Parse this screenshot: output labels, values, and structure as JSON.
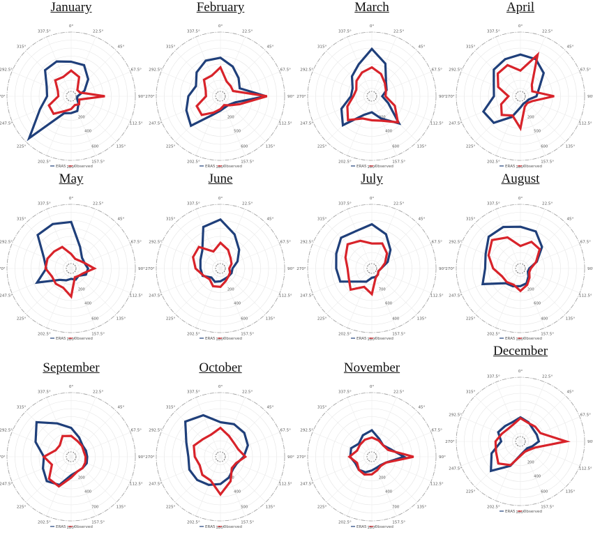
{
  "chart_data": {
    "type": "radar",
    "angle_labels": [
      "0°",
      "22.5°",
      "45°",
      "67.5°",
      "90°",
      "112.5°",
      "135°",
      "157.5°",
      "180°",
      "202.5°",
      "225°",
      "247.5°",
      "270°",
      "292.5°",
      "315°",
      "337.5°"
    ],
    "legend": [
      {
        "name": "ERA5",
        "color": "#1f3f7a"
      },
      {
        "name": "Observed",
        "color": "#d8232a"
      }
    ],
    "panels": [
      {
        "title": "January",
        "rmax": 800,
        "radial_ticks": [
          "200",
          "400",
          "600"
        ],
        "series": [
          {
            "name": "ERA5",
            "values": [
              430,
              420,
              300,
              180,
              80,
              80,
              130,
              200,
              210,
              230,
              740,
              420,
              300,
              330,
              460,
              470
            ]
          },
          {
            "name": "Observed",
            "values": [
              320,
              260,
              110,
              120,
              420,
              110,
              140,
              120,
              160,
              200,
              310,
              300,
              160,
              180,
              280,
              260
            ]
          }
        ]
      },
      {
        "title": "February",
        "rmax": 800,
        "radial_ticks": [
          "200",
          "500",
          "600"
        ],
        "series": [
          {
            "name": "ERA5",
            "values": [
              480,
              400,
              320,
              260,
              570,
              200,
              150,
              150,
              180,
              250,
              520,
              460,
              400,
              330,
              420,
              480
            ]
          },
          {
            "name": "Observed",
            "values": [
              360,
              200,
              180,
              170,
              580,
              260,
              160,
              120,
              160,
              220,
              330,
              320,
              180,
              200,
              290,
              280
            ]
          }
        ]
      },
      {
        "title": "March",
        "rmax": 800,
        "radial_ticks": [
          "200",
          "400",
          "600"
        ],
        "series": [
          {
            "name": "ERA5",
            "values": [
              590,
              440,
              250,
              200,
              130,
              220,
              480,
              300,
              200,
              250,
              510,
              410,
              260,
              260,
              350,
              430
            ]
          },
          {
            "name": "Observed",
            "values": [
              360,
              300,
              230,
              190,
              170,
              310,
              460,
              330,
              300,
              300,
              420,
              330,
              230,
              210,
              270,
              320
            ]
          }
        ]
      },
      {
        "title": "April",
        "rmax": 800,
        "radial_ticks": [
          "200",
          "500",
          "600"
        ],
        "series": [
          {
            "name": "ERA5",
            "values": [
              520,
              500,
              410,
              250,
              200,
              110,
              100,
              100,
              140,
              280,
              470,
              500,
              330,
              360,
              470,
              500
            ]
          },
          {
            "name": "Observed",
            "values": [
              320,
              560,
              200,
              160,
              420,
              160,
              120,
              140,
              400,
              260,
              330,
              260,
              150,
              300,
              400,
              420
            ]
          }
        ]
      },
      {
        "title": "May",
        "rmax": 800,
        "radial_ticks": [
          "200",
          "400",
          "600"
        ],
        "series": [
          {
            "name": "ERA5",
            "values": [
              580,
              290,
              190,
              180,
              210,
              200,
              130,
              150,
              130,
              160,
              200,
              460,
              310,
              370,
              590,
              600
            ]
          },
          {
            "name": "Observed",
            "values": [
              180,
              130,
              140,
              180,
              290,
              160,
              130,
              120,
              350,
              260,
              270,
              260,
              320,
              320,
              300,
              290
            ]
          }
        ]
      },
      {
        "title": "June",
        "rmax": 800,
        "radial_ticks": [
          "200",
          "400",
          "600"
        ],
        "series": [
          {
            "name": "ERA5",
            "values": [
              610,
              460,
              330,
              230,
              150,
              150,
              140,
              140,
              160,
              180,
              160,
              240,
              250,
              270,
              320,
              560
            ]
          },
          {
            "name": "Observed",
            "values": [
              320,
              250,
              180,
              150,
              110,
              130,
              140,
              170,
              230,
              240,
              190,
              230,
              310,
              370,
              380,
              230
            ]
          }
        ]
      },
      {
        "title": "July",
        "rmax": 900,
        "radial_ticks": [
          "700",
          "600",
          "400"
        ],
        "series": [
          {
            "name": "ERA5",
            "values": [
              620,
              520,
              370,
              240,
              130,
              100,
              120,
              130,
              130,
              200,
              260,
              480,
              500,
              540,
              610,
              570
            ]
          },
          {
            "name": "Observed",
            "values": [
              350,
              380,
              300,
              200,
              130,
              100,
              120,
              140,
              360,
              280,
              420,
              350,
              340,
              400,
              480,
              420
            ]
          }
        ]
      },
      {
        "title": "August",
        "rmax": 800,
        "radial_ticks": [
          "200",
          "600",
          "400"
        ],
        "series": [
          {
            "name": "ERA5",
            "values": [
              520,
              500,
              380,
              220,
              110,
              100,
              140,
              200,
              220,
              240,
              260,
              510,
              440,
              470,
              560,
              560
            ]
          },
          {
            "name": "Observed",
            "values": [
              280,
              360,
              340,
              210,
              130,
              120,
              160,
              220,
              280,
              220,
              240,
              250,
              340,
              430,
              500,
              420
            ]
          }
        ]
      },
      {
        "title": "September",
        "rmax": 800,
        "radial_ticks": [
          "200",
          "400",
          "700"
        ],
        "series": [
          {
            "name": "ERA5",
            "values": [
              360,
              260,
              200,
              200,
              200,
              210,
              200,
              200,
              230,
              380,
              430,
              380,
              340,
              480,
              610,
              450
            ]
          },
          {
            "name": "Observed",
            "values": [
              260,
              210,
              190,
              170,
              180,
              190,
              200,
              200,
              260,
              400,
              390,
              260,
              340,
              210,
              200,
              280
            ]
          }
        ]
      },
      {
        "title": "October",
        "rmax": 800,
        "radial_ticks": [
          "200",
          "400",
          "500"
        ],
        "series": [
          {
            "name": "ERA5",
            "values": [
              430,
              440,
              420,
              370,
              290,
              220,
              220,
              280,
              340,
              380,
              410,
              420,
              400,
              460,
              620,
              560
            ]
          },
          {
            "name": "Observed",
            "values": [
              360,
              280,
              240,
              240,
              310,
              210,
              200,
              330,
              470,
              320,
              320,
              280,
              320,
              360,
              310,
              300
            ]
          }
        ]
      },
      {
        "title": "November",
        "rmax": 800,
        "radial_ticks": [
          "200",
          "400",
          "700"
        ],
        "series": [
          {
            "name": "ERA5",
            "values": [
              330,
              240,
              200,
              250,
              400,
              190,
              150,
              150,
              170,
              210,
              230,
              220,
              270,
              280,
              230,
              290
            ]
          },
          {
            "name": "Observed",
            "values": [
              240,
              220,
              200,
              220,
              520,
              190,
              160,
              180,
              220,
              240,
              230,
              200,
              280,
              200,
              210,
              230
            ]
          }
        ]
      },
      {
        "title": "December",
        "rmax": 800,
        "radial_ticks": [
          "200",
          "400",
          "600"
        ],
        "series": [
          {
            "name": "ERA5",
            "values": [
              300,
              260,
              220,
              220,
              230,
              160,
              120,
              130,
              170,
              330,
              520,
              390,
              240,
              300,
              270,
              260
            ]
          },
          {
            "name": "Observed",
            "values": [
              290,
              250,
              260,
              270,
              570,
              200,
              150,
              140,
              180,
              320,
              390,
              330,
              310,
              250,
              220,
              230
            ]
          }
        ]
      }
    ]
  }
}
